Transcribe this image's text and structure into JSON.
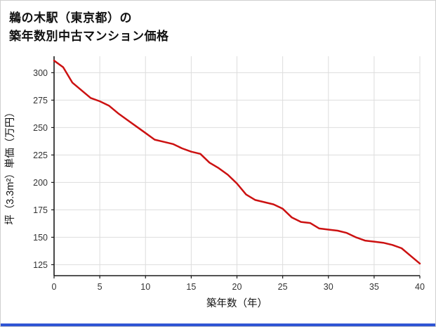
{
  "title": {
    "line1": "鵜の木駅（東京都）の",
    "line2": "築年数別中古マンション価格"
  },
  "chart_data": {
    "type": "line",
    "title": "鵜の木駅（東京都）の築年数別中古マンション価格",
    "xlabel": "築年数（年）",
    "ylabel": "坪（3.3m²）単価（万円）",
    "x": [
      0,
      1,
      2,
      3,
      4,
      5,
      6,
      7,
      8,
      9,
      10,
      11,
      12,
      13,
      14,
      15,
      16,
      17,
      18,
      19,
      20,
      21,
      22,
      23,
      24,
      25,
      26,
      27,
      28,
      29,
      30,
      31,
      32,
      33,
      34,
      35,
      36,
      37,
      38,
      39,
      40
    ],
    "values": [
      311,
      305,
      291,
      284,
      277,
      274,
      270,
      263,
      257,
      251,
      245,
      239,
      237,
      235,
      231,
      228,
      226,
      218,
      213,
      207,
      199,
      189,
      184,
      182,
      180,
      176,
      168,
      164,
      163,
      158,
      157,
      156,
      154,
      150,
      147,
      146,
      145,
      143,
      140,
      133,
      126
    ],
    "xlim": [
      0,
      40
    ],
    "ylim": [
      115,
      315
    ],
    "xticks": [
      0,
      5,
      10,
      15,
      20,
      25,
      30,
      35,
      40
    ],
    "yticks": [
      125,
      150,
      175,
      200,
      225,
      250,
      275,
      300
    ],
    "grid": true,
    "legend": "none",
    "line_color": "#cc1111",
    "grid_color": "#dddddd",
    "axis_color": "#1a1a1a",
    "tick_label_color": "#333333",
    "accent_bar_color": "#2f55d4"
  }
}
